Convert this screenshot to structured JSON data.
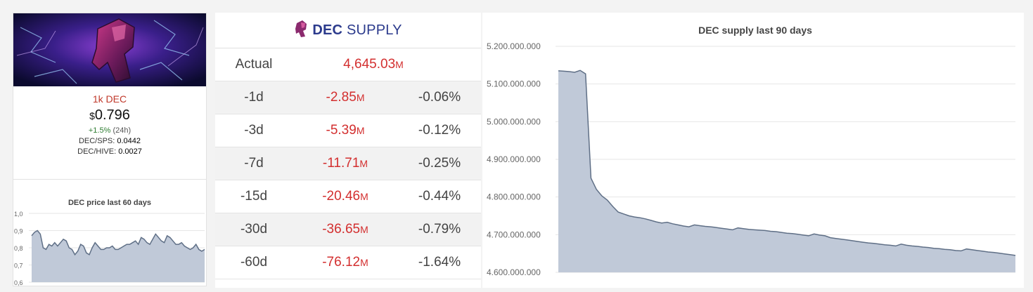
{
  "card": {
    "name": "1k DEC",
    "currency": "$",
    "price": "0.796",
    "change_pct": "+1.5%",
    "change_period": "(24h)",
    "ratio_sps_label": "DEC/SPS:",
    "ratio_sps_value": "0.0442",
    "ratio_hive_label": "DEC/HIVE:",
    "ratio_hive_value": "0.0027"
  },
  "supply": {
    "title_bold": "DEC",
    "title_rest": "SUPPLY",
    "actual_label": "Actual",
    "actual_value": "4,645.03",
    "actual_unit": "M",
    "rows": [
      {
        "period": "-1d",
        "value": "-2.85",
        "unit": "M",
        "pct": "-0.06%"
      },
      {
        "period": "-3d",
        "value": "-5.39",
        "unit": "M",
        "pct": "-0.12%"
      },
      {
        "period": "-7d",
        "value": "-11.71",
        "unit": "M",
        "pct": "-0.25%"
      },
      {
        "period": "-15d",
        "value": "-20.46",
        "unit": "M",
        "pct": "-0.44%"
      },
      {
        "period": "-30d",
        "value": "-36.65",
        "unit": "M",
        "pct": "-0.79%"
      },
      {
        "period": "-60d",
        "value": "-76.12",
        "unit": "M",
        "pct": "-1.64%"
      }
    ]
  },
  "chart_data": [
    {
      "type": "area",
      "title": "DEC price last 60 days",
      "xlabel": "",
      "ylabel": "",
      "ylim": [
        0.6,
        1.0
      ],
      "yticks": [
        "1,0",
        "0,9",
        "0,8",
        "0,7",
        "0,6"
      ],
      "ytick_values": [
        1.0,
        0.9,
        0.8,
        0.7,
        0.6
      ],
      "grid": true,
      "color": "#c0c9d8",
      "line_color": "#5f6f86",
      "y": [
        0.87,
        0.89,
        0.9,
        0.88,
        0.8,
        0.79,
        0.82,
        0.81,
        0.83,
        0.81,
        0.83,
        0.85,
        0.84,
        0.8,
        0.79,
        0.76,
        0.78,
        0.82,
        0.81,
        0.77,
        0.76,
        0.8,
        0.83,
        0.81,
        0.79,
        0.79,
        0.8,
        0.8,
        0.81,
        0.79,
        0.79,
        0.8,
        0.81,
        0.82,
        0.82,
        0.83,
        0.84,
        0.82,
        0.86,
        0.85,
        0.83,
        0.82,
        0.85,
        0.88,
        0.86,
        0.84,
        0.83,
        0.87,
        0.86,
        0.84,
        0.82,
        0.82,
        0.83,
        0.81,
        0.8,
        0.79,
        0.8,
        0.82,
        0.79,
        0.78,
        0.79
      ]
    },
    {
      "type": "area",
      "title": "DEC supply last 90 days",
      "xlabel": "",
      "ylabel": "",
      "ylim": [
        4600000000,
        5200000000
      ],
      "yticks": [
        "5.200.000.000",
        "5.100.000.000",
        "5.000.000.000",
        "4.900.000.000",
        "4.800.000.000",
        "4.700.000.000",
        "4.600.000.000"
      ],
      "ytick_values": [
        5200000000,
        5100000000,
        5000000000,
        4900000000,
        4800000000,
        4700000000,
        4600000000
      ],
      "grid": true,
      "color": "#c0c9d8",
      "line_color": "#5f6f86",
      "y": [
        5135000000,
        5134000000,
        5133000000,
        5131000000,
        5136000000,
        5127000000,
        4850000000,
        4820000000,
        4803000000,
        4792000000,
        4775000000,
        4760000000,
        4755000000,
        4750000000,
        4747000000,
        4745000000,
        4742000000,
        4738000000,
        4734000000,
        4731000000,
        4733000000,
        4729000000,
        4726000000,
        4723000000,
        4721000000,
        4726000000,
        4724000000,
        4722000000,
        4721000000,
        4719000000,
        4717000000,
        4715000000,
        4713000000,
        4718000000,
        4716000000,
        4714000000,
        4713000000,
        4712000000,
        4711000000,
        4709000000,
        4708000000,
        4706000000,
        4704000000,
        4703000000,
        4701000000,
        4699000000,
        4697000000,
        4702000000,
        4699000000,
        4697000000,
        4692000000,
        4690000000,
        4688000000,
        4686000000,
        4684000000,
        4682000000,
        4680000000,
        4678000000,
        4677000000,
        4675000000,
        4673000000,
        4672000000,
        4670000000,
        4675000000,
        4672000000,
        4670000000,
        4669000000,
        4667000000,
        4666000000,
        4664000000,
        4663000000,
        4661000000,
        4660000000,
        4658000000,
        4657000000,
        4662000000,
        4660000000,
        4658000000,
        4656000000,
        4654000000,
        4653000000,
        4651000000,
        4649000000,
        4647000000,
        4645000000
      ]
    }
  ]
}
